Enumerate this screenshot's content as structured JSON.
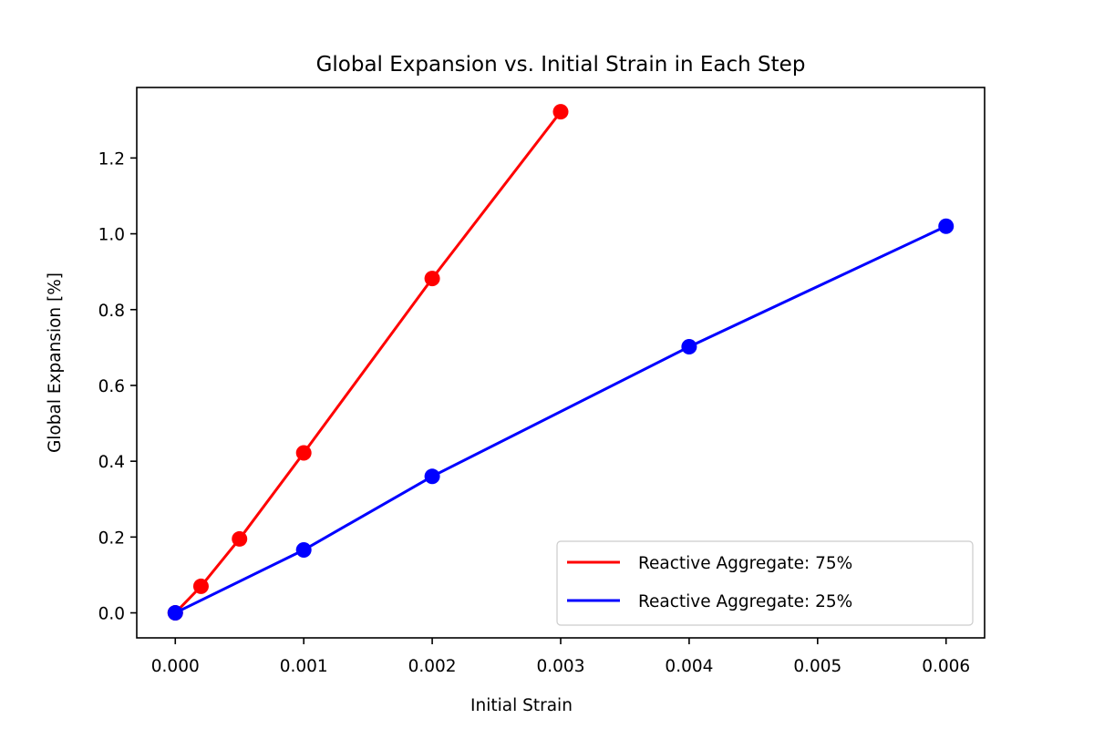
{
  "chart_data": {
    "type": "line",
    "title": "Global Expansion vs. Initial Strain in Each Step",
    "xlabel": "Initial Strain",
    "ylabel": "Global Expansion [%]",
    "xlim": [
      -0.0003,
      0.0063
    ],
    "ylim": [
      -0.066,
      1.386
    ],
    "xticks": [
      0.0,
      0.001,
      0.002,
      0.003,
      0.004,
      0.005,
      0.006
    ],
    "xtick_labels": [
      "0.000",
      "0.001",
      "0.002",
      "0.003",
      "0.004",
      "0.005",
      "0.006"
    ],
    "yticks": [
      0.0,
      0.2,
      0.4,
      0.6,
      0.8,
      1.0,
      1.2
    ],
    "ytick_labels": [
      "0.0",
      "0.2",
      "0.4",
      "0.6",
      "0.8",
      "1.0",
      "1.2"
    ],
    "grid": false,
    "legend_position": "lower-right",
    "series": [
      {
        "name": "Reactive Aggregate: 75%",
        "color": "#ff0000",
        "x": [
          0.0,
          0.0002,
          0.0005,
          0.001,
          0.002,
          0.003
        ],
        "y": [
          0.0,
          0.07,
          0.195,
          0.422,
          0.882,
          1.322
        ]
      },
      {
        "name": "Reactive Aggregate: 25%",
        "color": "#0000ff",
        "x": [
          0.0,
          0.001,
          0.002,
          0.004,
          0.006
        ],
        "y": [
          0.0,
          0.166,
          0.36,
          0.702,
          1.02
        ]
      }
    ]
  }
}
